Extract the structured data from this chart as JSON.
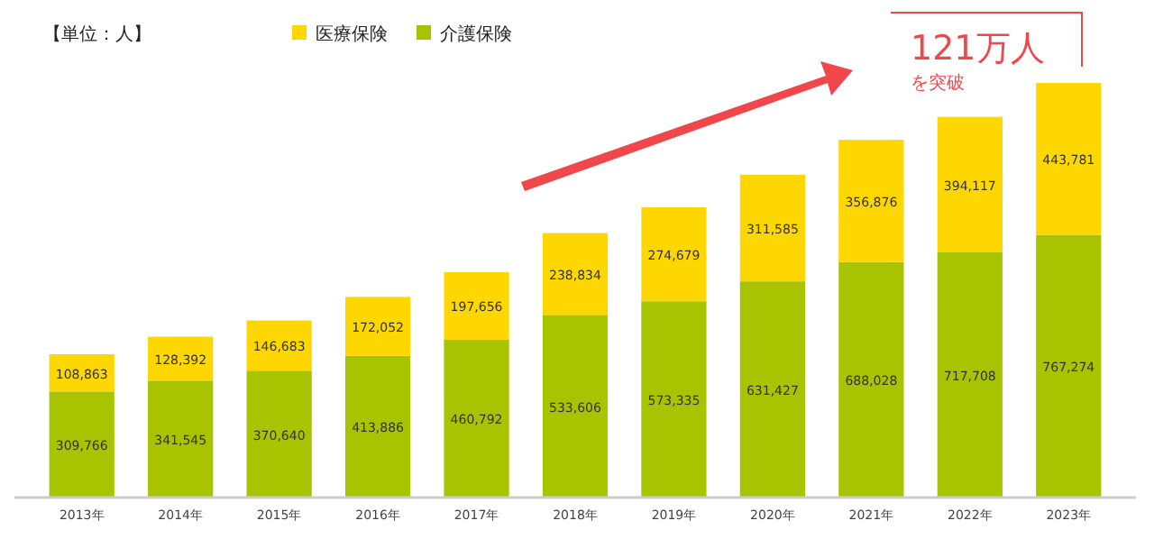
{
  "chart_data": {
    "type": "bar",
    "stacked": true,
    "legend": "top left",
    "categories": [
      "2013年",
      "2014年",
      "2015年",
      "2016年",
      "2017年",
      "2018年",
      "2019年",
      "2020年",
      "2021年",
      "2022年",
      "2023年"
    ],
    "series": [
      {
        "name": "介護保険",
        "color": "#a8c400",
        "values": [
          309766,
          341545,
          370640,
          413886,
          460792,
          533606,
          573335,
          631427,
          688028,
          717708,
          767274
        ],
        "value_labels": [
          "309,766",
          "341,545",
          "370,640",
          "413,886",
          "460,792",
          "533,606",
          "573,335",
          "631,427",
          "688,028",
          "717,708",
          "767,274"
        ]
      },
      {
        "name": "医療保険",
        "color": "#ffd700",
        "values": [
          108863,
          128392,
          146683,
          172052,
          197656,
          238834,
          274679,
          311585,
          356876,
          394117,
          443781
        ],
        "value_labels": [
          "108,863",
          "128,392",
          "146,683",
          "172,052",
          "197,656",
          "238,834",
          "274,679",
          "311,585",
          "356,876",
          "394,117",
          "443,781"
        ]
      }
    ],
    "annotations": [
      "【単位：人】",
      "121万人",
      "を突破"
    ]
  }
}
